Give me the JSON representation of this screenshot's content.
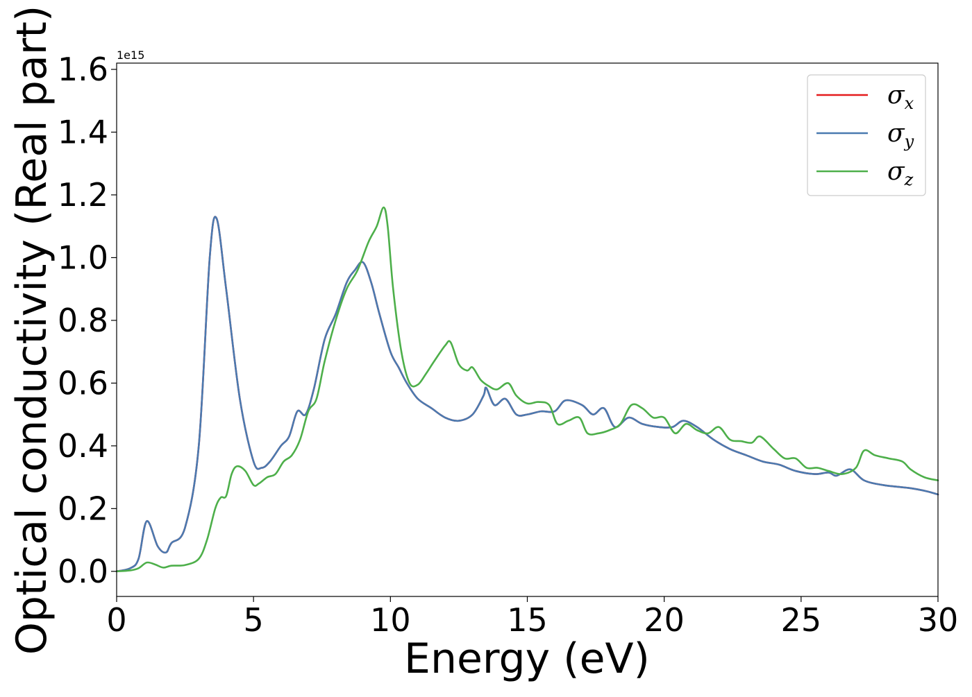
{
  "chart_data": {
    "type": "line",
    "title": "",
    "xlabel": "Energy (eV)",
    "ylabel": "Optical conductivity (Real part)",
    "y_offset_label": "1e15",
    "xlim": [
      0,
      30
    ],
    "ylim": [
      -0.08,
      1.62
    ],
    "x_ticks": [
      0,
      5,
      10,
      15,
      20,
      25,
      30
    ],
    "x_tick_labels": [
      "0",
      "5",
      "10",
      "15",
      "20",
      "25",
      "30"
    ],
    "y_ticks": [
      0.0,
      0.2,
      0.4,
      0.6,
      0.8,
      1.0,
      1.2,
      1.4,
      1.6
    ],
    "y_tick_labels": [
      "0.0",
      "0.2",
      "0.4",
      "0.6",
      "0.8",
      "1.0",
      "1.2",
      "1.4",
      "1.6"
    ],
    "grid": false,
    "legend_position": "top-right",
    "series": [
      {
        "name": "σx",
        "legend_symbol": "σ",
        "legend_subscript": "x",
        "color": "#e41a1c",
        "points": [
          [
            0,
            0
          ],
          [
            0.5,
            0.01
          ],
          [
            0.8,
            0.04
          ],
          [
            1.1,
            0.16
          ],
          [
            1.5,
            0.08
          ],
          [
            1.8,
            0.06
          ],
          [
            2.0,
            0.09
          ],
          [
            2.5,
            0.14
          ],
          [
            3.0,
            0.4
          ],
          [
            3.4,
            1.0
          ],
          [
            3.65,
            1.125
          ],
          [
            4.0,
            0.9
          ],
          [
            4.5,
            0.55
          ],
          [
            5.0,
            0.35
          ],
          [
            5.3,
            0.33
          ],
          [
            5.6,
            0.35
          ],
          [
            6.0,
            0.4
          ],
          [
            6.3,
            0.43
          ],
          [
            6.6,
            0.51
          ],
          [
            6.9,
            0.5
          ],
          [
            7.2,
            0.58
          ],
          [
            7.6,
            0.74
          ],
          [
            8.0,
            0.82
          ],
          [
            8.4,
            0.92
          ],
          [
            8.7,
            0.96
          ],
          [
            9.0,
            0.985
          ],
          [
            9.3,
            0.92
          ],
          [
            9.6,
            0.82
          ],
          [
            10.0,
            0.7
          ],
          [
            10.3,
            0.65
          ],
          [
            10.6,
            0.6
          ],
          [
            11.0,
            0.55
          ],
          [
            11.5,
            0.52
          ],
          [
            12.0,
            0.49
          ],
          [
            12.5,
            0.48
          ],
          [
            13.0,
            0.5
          ],
          [
            13.4,
            0.56
          ],
          [
            13.5,
            0.585
          ],
          [
            13.8,
            0.53
          ],
          [
            14.2,
            0.55
          ],
          [
            14.6,
            0.5
          ],
          [
            15.0,
            0.5
          ],
          [
            15.5,
            0.51
          ],
          [
            16.0,
            0.51
          ],
          [
            16.4,
            0.545
          ],
          [
            17.0,
            0.53
          ],
          [
            17.4,
            0.5
          ],
          [
            17.8,
            0.52
          ],
          [
            18.2,
            0.46
          ],
          [
            18.7,
            0.49
          ],
          [
            19.2,
            0.47
          ],
          [
            19.8,
            0.46
          ],
          [
            20.3,
            0.46
          ],
          [
            20.7,
            0.48
          ],
          [
            21.2,
            0.46
          ],
          [
            21.8,
            0.42
          ],
          [
            22.4,
            0.39
          ],
          [
            23.0,
            0.37
          ],
          [
            23.6,
            0.35
          ],
          [
            24.2,
            0.34
          ],
          [
            24.8,
            0.32
          ],
          [
            25.5,
            0.31
          ],
          [
            26.0,
            0.315
          ],
          [
            26.3,
            0.305
          ],
          [
            26.8,
            0.325
          ],
          [
            27.3,
            0.29
          ],
          [
            28.0,
            0.275
          ],
          [
            29.0,
            0.265
          ],
          [
            29.6,
            0.255
          ],
          [
            30.0,
            0.245
          ]
        ]
      },
      {
        "name": "σy",
        "legend_symbol": "σ",
        "legend_subscript": "y",
        "color": "#4a7ab0",
        "points": [
          [
            0,
            0
          ],
          [
            0.5,
            0.01
          ],
          [
            0.8,
            0.04
          ],
          [
            1.1,
            0.16
          ],
          [
            1.5,
            0.08
          ],
          [
            1.8,
            0.06
          ],
          [
            2.0,
            0.09
          ],
          [
            2.5,
            0.14
          ],
          [
            3.0,
            0.4
          ],
          [
            3.4,
            1.0
          ],
          [
            3.65,
            1.125
          ],
          [
            4.0,
            0.9
          ],
          [
            4.5,
            0.55
          ],
          [
            5.0,
            0.35
          ],
          [
            5.3,
            0.33
          ],
          [
            5.6,
            0.35
          ],
          [
            6.0,
            0.4
          ],
          [
            6.3,
            0.43
          ],
          [
            6.6,
            0.51
          ],
          [
            6.9,
            0.5
          ],
          [
            7.2,
            0.58
          ],
          [
            7.6,
            0.74
          ],
          [
            8.0,
            0.82
          ],
          [
            8.4,
            0.92
          ],
          [
            8.7,
            0.96
          ],
          [
            9.0,
            0.985
          ],
          [
            9.3,
            0.92
          ],
          [
            9.6,
            0.82
          ],
          [
            10.0,
            0.7
          ],
          [
            10.3,
            0.65
          ],
          [
            10.6,
            0.6
          ],
          [
            11.0,
            0.55
          ],
          [
            11.5,
            0.52
          ],
          [
            12.0,
            0.49
          ],
          [
            12.5,
            0.48
          ],
          [
            13.0,
            0.5
          ],
          [
            13.4,
            0.56
          ],
          [
            13.5,
            0.585
          ],
          [
            13.8,
            0.53
          ],
          [
            14.2,
            0.55
          ],
          [
            14.6,
            0.5
          ],
          [
            15.0,
            0.5
          ],
          [
            15.5,
            0.51
          ],
          [
            16.0,
            0.51
          ],
          [
            16.4,
            0.545
          ],
          [
            17.0,
            0.53
          ],
          [
            17.4,
            0.5
          ],
          [
            17.8,
            0.52
          ],
          [
            18.2,
            0.46
          ],
          [
            18.7,
            0.49
          ],
          [
            19.2,
            0.47
          ],
          [
            19.8,
            0.46
          ],
          [
            20.3,
            0.46
          ],
          [
            20.7,
            0.48
          ],
          [
            21.2,
            0.46
          ],
          [
            21.8,
            0.42
          ],
          [
            22.4,
            0.39
          ],
          [
            23.0,
            0.37
          ],
          [
            23.6,
            0.35
          ],
          [
            24.2,
            0.34
          ],
          [
            24.8,
            0.32
          ],
          [
            25.5,
            0.31
          ],
          [
            26.0,
            0.315
          ],
          [
            26.3,
            0.305
          ],
          [
            26.8,
            0.325
          ],
          [
            27.3,
            0.29
          ],
          [
            28.0,
            0.275
          ],
          [
            29.0,
            0.265
          ],
          [
            29.6,
            0.255
          ],
          [
            30.0,
            0.245
          ]
        ]
      },
      {
        "name": "σz",
        "legend_symbol": "σ",
        "legend_subscript": "z",
        "color": "#4daf4a",
        "points": [
          [
            0,
            0
          ],
          [
            0.5,
            0.003
          ],
          [
            0.8,
            0.01
          ],
          [
            1.1,
            0.028
          ],
          [
            1.4,
            0.022
          ],
          [
            1.7,
            0.012
          ],
          [
            2.0,
            0.018
          ],
          [
            2.5,
            0.02
          ],
          [
            3.0,
            0.04
          ],
          [
            3.3,
            0.1
          ],
          [
            3.6,
            0.2
          ],
          [
            3.8,
            0.235
          ],
          [
            4.0,
            0.24
          ],
          [
            4.2,
            0.31
          ],
          [
            4.4,
            0.335
          ],
          [
            4.7,
            0.32
          ],
          [
            5.0,
            0.275
          ],
          [
            5.2,
            0.28
          ],
          [
            5.5,
            0.3
          ],
          [
            5.8,
            0.31
          ],
          [
            6.1,
            0.35
          ],
          [
            6.4,
            0.37
          ],
          [
            6.7,
            0.42
          ],
          [
            7.0,
            0.51
          ],
          [
            7.3,
            0.55
          ],
          [
            7.6,
            0.67
          ],
          [
            8.0,
            0.8
          ],
          [
            8.4,
            0.9
          ],
          [
            8.8,
            0.96
          ],
          [
            9.2,
            1.05
          ],
          [
            9.5,
            1.1
          ],
          [
            9.75,
            1.16
          ],
          [
            9.9,
            1.1
          ],
          [
            10.1,
            0.9
          ],
          [
            10.4,
            0.7
          ],
          [
            10.7,
            0.6
          ],
          [
            11.0,
            0.595
          ],
          [
            11.3,
            0.63
          ],
          [
            11.6,
            0.67
          ],
          [
            12.0,
            0.72
          ],
          [
            12.2,
            0.73
          ],
          [
            12.5,
            0.66
          ],
          [
            12.8,
            0.64
          ],
          [
            13.0,
            0.65
          ],
          [
            13.3,
            0.61
          ],
          [
            13.6,
            0.59
          ],
          [
            13.9,
            0.58
          ],
          [
            14.3,
            0.6
          ],
          [
            14.6,
            0.56
          ],
          [
            15.0,
            0.535
          ],
          [
            15.4,
            0.54
          ],
          [
            15.8,
            0.53
          ],
          [
            16.1,
            0.47
          ],
          [
            16.5,
            0.48
          ],
          [
            16.9,
            0.49
          ],
          [
            17.2,
            0.44
          ],
          [
            17.6,
            0.44
          ],
          [
            18.0,
            0.45
          ],
          [
            18.4,
            0.47
          ],
          [
            18.8,
            0.53
          ],
          [
            19.2,
            0.52
          ],
          [
            19.6,
            0.49
          ],
          [
            20.0,
            0.49
          ],
          [
            20.4,
            0.44
          ],
          [
            20.8,
            0.47
          ],
          [
            21.2,
            0.45
          ],
          [
            21.6,
            0.44
          ],
          [
            22.0,
            0.46
          ],
          [
            22.4,
            0.42
          ],
          [
            22.8,
            0.415
          ],
          [
            23.2,
            0.41
          ],
          [
            23.5,
            0.43
          ],
          [
            24.0,
            0.39
          ],
          [
            24.4,
            0.36
          ],
          [
            24.8,
            0.36
          ],
          [
            25.2,
            0.33
          ],
          [
            25.6,
            0.33
          ],
          [
            26.0,
            0.32
          ],
          [
            26.5,
            0.31
          ],
          [
            27.0,
            0.33
          ],
          [
            27.3,
            0.385
          ],
          [
            27.7,
            0.37
          ],
          [
            28.2,
            0.36
          ],
          [
            28.7,
            0.35
          ],
          [
            29.0,
            0.325
          ],
          [
            29.5,
            0.3
          ],
          [
            30.0,
            0.29
          ]
        ]
      }
    ]
  }
}
